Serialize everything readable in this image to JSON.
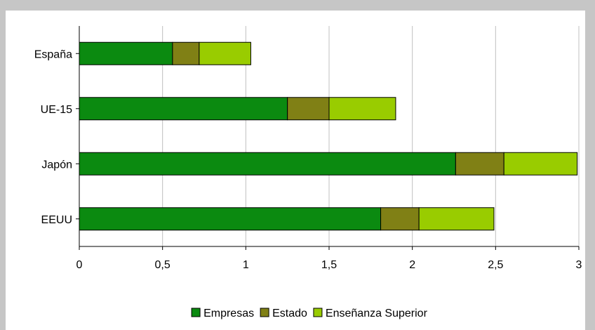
{
  "chart_data": {
    "type": "bar",
    "orientation": "horizontal",
    "stacked": true,
    "categories": [
      "España",
      "UE-15",
      "Japón",
      "EEUU"
    ],
    "series": [
      {
        "name": "Empresas",
        "color": "#0b8a10",
        "values": [
          0.56,
          1.25,
          2.26,
          1.81
        ]
      },
      {
        "name": "Estado",
        "color": "#808015",
        "values": [
          0.16,
          0.25,
          0.29,
          0.23
        ]
      },
      {
        "name": "Enseñanza Superior",
        "color": "#99cc00",
        "values": [
          0.31,
          0.4,
          0.44,
          0.45
        ]
      }
    ],
    "xlim": [
      0,
      3
    ],
    "xticks": [
      0,
      0.5,
      1,
      1.5,
      2,
      2.5,
      3
    ],
    "xtick_labels": [
      "0",
      "0,5",
      "1",
      "1,5",
      "2",
      "2,5",
      "3"
    ],
    "grid": true,
    "legend_position": "bottom",
    "title": "",
    "xlabel": "",
    "ylabel": ""
  }
}
